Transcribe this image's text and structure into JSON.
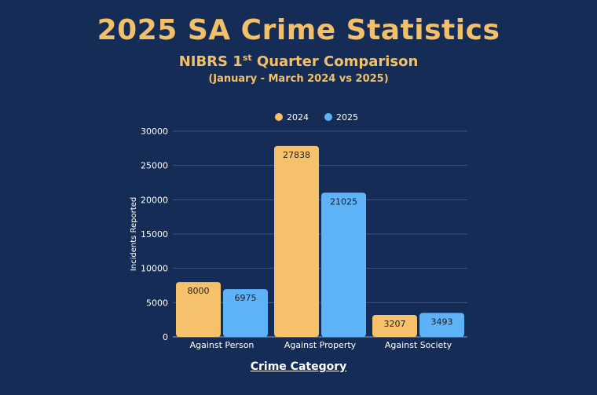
{
  "header": {
    "title": "2025 SA Crime Statistics",
    "subtitle_main": "NIBRS 1",
    "subtitle_sup": "st",
    "subtitle_rest": " Quarter Comparison",
    "period": "(January - March 2024 vs 2025)"
  },
  "colors": {
    "background": "#152c57",
    "accent": "#f2c069",
    "series_2024": "#f5c26b",
    "series_2025": "#5eb3f8",
    "gridline": "#3b5580",
    "text": "#ffffff"
  },
  "chart_data": {
    "type": "bar",
    "title": "2025 SA Crime Statistics",
    "xlabel": "Crime Category",
    "ylabel": "Incidents Reported",
    "categories": [
      "Against Person",
      "Against Property",
      "Against Society"
    ],
    "series": [
      {
        "name": "2024",
        "values": [
          8000,
          27838,
          3207
        ]
      },
      {
        "name": "2025",
        "values": [
          6975,
          21025,
          3493
        ]
      }
    ],
    "ylim": [
      0,
      30000
    ],
    "yticks": [
      0,
      5000,
      10000,
      15000,
      20000,
      25000,
      30000
    ],
    "grid": true,
    "legend": "top"
  }
}
